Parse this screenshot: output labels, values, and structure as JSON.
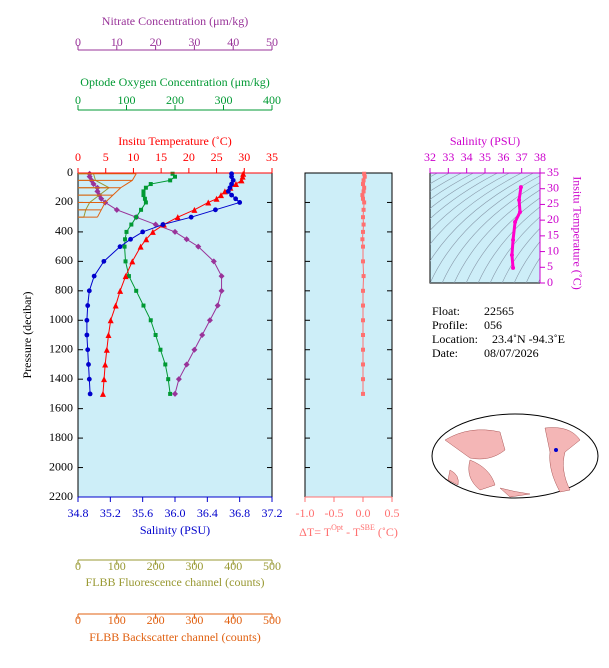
{
  "chart_data": [
    {
      "type": "profile",
      "ylabel": "Pressure (decibar)",
      "ylim": [
        0,
        2200
      ],
      "y_inverted": true,
      "yticks": [
        0,
        200,
        400,
        600,
        800,
        1000,
        1200,
        1400,
        1600,
        1800,
        2000,
        2200
      ],
      "axes": [
        {
          "label": "Nitrate Concentration (μm/kg)",
          "color": "#993399",
          "position": "top",
          "lim": [
            0,
            50
          ],
          "ticks": [
            0,
            10,
            20,
            30,
            40,
            50
          ],
          "series": [
            {
              "marker": "diamond",
              "pressure": [
                5,
                25,
                50,
                75,
                100,
                125,
                150,
                175,
                200,
                250,
                300,
                350,
                400,
                450,
                500,
                600,
                700,
                800,
                900,
                1000,
                1100,
                1200,
                1300,
                1400,
                1500
              ],
              "values": [
                3,
                3,
                3.5,
                4,
                5,
                5,
                5.5,
                6,
                7,
                10,
                15,
                20,
                25,
                28,
                31,
                35,
                37,
                37,
                36,
                34,
                32,
                30,
                28,
                26,
                25
              ]
            }
          ]
        },
        {
          "label": "Optode Oxygen Concentration (μm/kg)",
          "color": "#009933",
          "position": "top",
          "lim": [
            0,
            400
          ],
          "ticks": [
            0,
            100,
            200,
            300,
            400
          ],
          "series": [
            {
              "marker": "square",
              "pressure": [
                5,
                25,
                50,
                75,
                100,
                125,
                150,
                175,
                200,
                250,
                300,
                350,
                400,
                450,
                500,
                600,
                700,
                800,
                900,
                1000,
                1100,
                1200,
                1300,
                1400,
                1500
              ],
              "values": [
                195,
                200,
                190,
                150,
                140,
                135,
                135,
                138,
                140,
                130,
                120,
                110,
                100,
                97,
                96,
                98,
                105,
                120,
                135,
                150,
                160,
                170,
                180,
                186,
                190
              ]
            }
          ]
        },
        {
          "label": "Insitu Temperature (˚C)",
          "color": "#ff0000",
          "position": "top",
          "lim": [
            0,
            35
          ],
          "ticks": [
            0,
            5,
            10,
            15,
            20,
            25,
            30,
            35
          ],
          "series": [
            {
              "marker": "triangle",
              "pressure": [
                5,
                25,
                50,
                75,
                100,
                125,
                150,
                175,
                200,
                250,
                300,
                350,
                400,
                450,
                500,
                600,
                700,
                800,
                900,
                1000,
                1100,
                1200,
                1300,
                1400,
                1500
              ],
              "values": [
                29.8,
                29.7,
                29.5,
                28.5,
                27.5,
                26.5,
                25.8,
                25,
                23.5,
                21,
                18,
                15.5,
                13.5,
                12.3,
                11.3,
                9.8,
                8.6,
                7.6,
                6.8,
                5.9,
                5.5,
                5.2,
                4.9,
                4.7,
                4.5
              ]
            }
          ]
        },
        {
          "label": "Salinity (PSU)",
          "color": "#0000cc",
          "position": "bottom",
          "lim": [
            34.8,
            37.2
          ],
          "ticks": [
            34.8,
            35.2,
            35.6,
            {
              "value": 36,
              "label": "36.0"
            },
            36.4,
            36.8,
            37.2
          ],
          "series": [
            {
              "marker": "circle",
              "pressure": [
                5,
                25,
                50,
                75,
                100,
                125,
                150,
                175,
                200,
                250,
                300,
                350,
                400,
                450,
                500,
                600,
                700,
                800,
                900,
                1000,
                1100,
                1200,
                1300,
                1400,
                1500
              ],
              "values": [
                36.7,
                36.7,
                36.72,
                36.7,
                36.68,
                36.66,
                36.7,
                36.75,
                36.8,
                36.5,
                36.2,
                35.85,
                35.6,
                35.45,
                35.32,
                35.12,
                35.0,
                34.94,
                34.92,
                34.91,
                34.91,
                34.92,
                34.93,
                34.94,
                34.95
              ]
            }
          ]
        },
        {
          "label": "FLBB Fluorescence channel (counts)",
          "color": "#999933",
          "position": "bottom",
          "lim": [
            0,
            500
          ],
          "ticks": [
            0,
            100,
            200,
            300,
            400,
            500
          ],
          "series": [
            {
              "marker": "none",
              "pressure": [
                5,
                50,
                100,
                150,
                200,
                250,
                300
              ],
              "values": [
                40,
                45,
                80,
                55,
                30,
                20,
                15
              ]
            }
          ]
        },
        {
          "label": "FLBB Backscatter channel (counts)",
          "color": "#e06010",
          "position": "bottom",
          "lim": [
            0,
            500
          ],
          "ticks": [
            0,
            100,
            200,
            300,
            400,
            500
          ],
          "series": [
            {
              "marker": "none",
              "pressure": [
                5,
                50,
                100,
                150,
                200,
                250,
                300
              ],
              "values": [
                150,
                140,
                110,
                90,
                70,
                60,
                50
              ]
            }
          ]
        }
      ]
    },
    {
      "type": "delta",
      "color": "#ff7070",
      "xlabel_parts": [
        "ΔT= T",
        "Opt",
        " - T",
        "SBE",
        " (˚C)"
      ],
      "xlim": [
        -1,
        0.5
      ],
      "xticks": [
        {
          "value": -1,
          "label": "-1.0"
        },
        {
          "value": -0.5,
          "label": "-0.5"
        },
        {
          "value": 0,
          "label": "0.0"
        },
        0.5
      ],
      "ylim": [
        0,
        2200
      ],
      "yticks": [
        0,
        200,
        400,
        600,
        800,
        1000,
        1200,
        1400,
        1600,
        1800,
        2000,
        2200
      ],
      "pressure": [
        5,
        25,
        50,
        75,
        100,
        125,
        150,
        175,
        200,
        250,
        300,
        350,
        400,
        450,
        500,
        600,
        700,
        800,
        900,
        1000,
        1100,
        1200,
        1300,
        1400,
        1500
      ],
      "values": [
        0.02,
        0.03,
        0.01,
        0.0,
        0.02,
        0.01,
        -0.01,
        0.0,
        0.02,
        0.01,
        0.0,
        0.01,
        0.0,
        -0.01,
        0.0,
        0.0,
        0.01,
        0.0,
        0.0,
        0.0,
        0.0,
        0.0,
        0.0,
        0.0,
        0.0
      ]
    },
    {
      "type": "ts",
      "color": "#ff00cc",
      "xlabel": "Salinity (PSU)",
      "ylabel": "Insitu Temperature (˚C)",
      "xlim": [
        32,
        38
      ],
      "xticks": [
        32,
        33,
        34,
        35,
        36,
        37,
        38
      ],
      "ylim": [
        0,
        35
      ],
      "yticks": [
        0,
        5,
        10,
        15,
        20,
        25,
        30,
        35
      ],
      "x": [
        36.96,
        36.86,
        36.91,
        36.64,
        36.53,
        36.47,
        36.53
      ],
      "y": [
        30.5,
        26.4,
        22.6,
        19.4,
        13.7,
        8.9,
        4.8
      ]
    }
  ],
  "float_info": [
    {
      "label": "Float:",
      "value": "22565"
    },
    {
      "label": "Profile:",
      "value": "056"
    },
    {
      "label": "Location:",
      "value": "23.4˚N  -94.3˚E"
    },
    {
      "label": "Date:",
      "value": "08/07/2026"
    }
  ]
}
